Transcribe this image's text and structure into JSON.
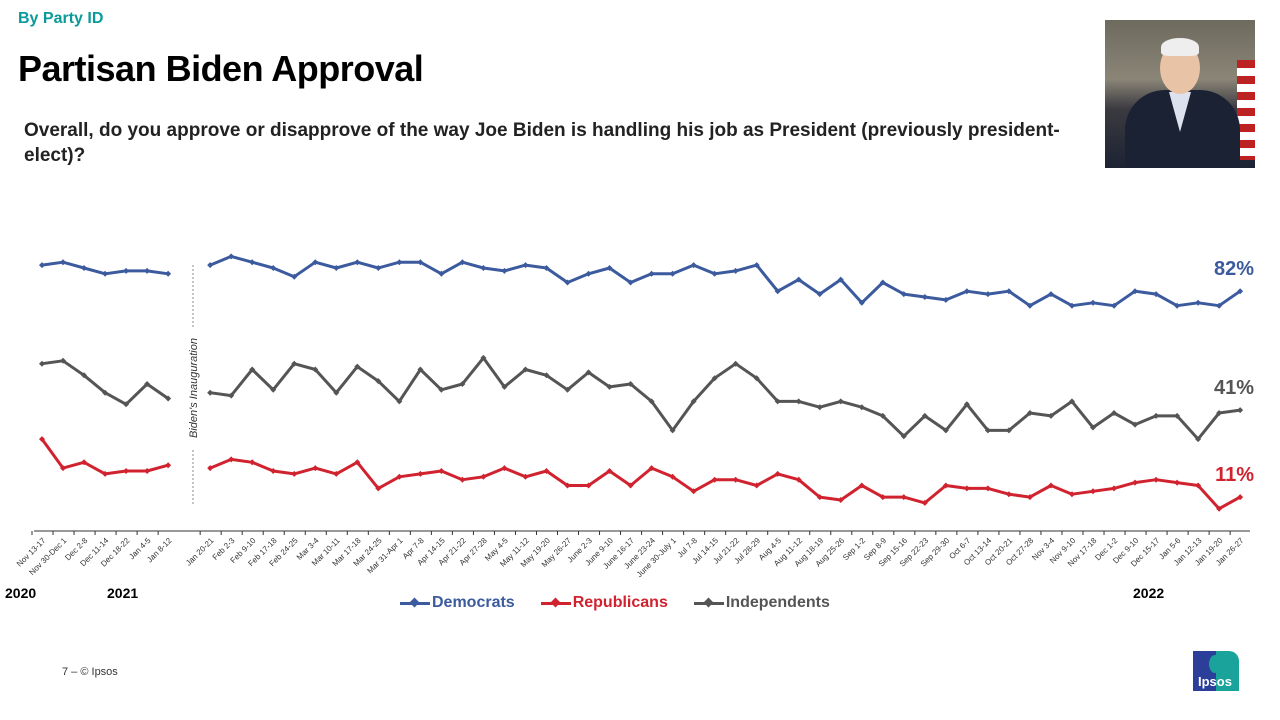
{
  "header": {
    "kicker": "By Party ID",
    "title": "Partisan Biden Approval",
    "question": "Overall, do you approve or disapprove of the way Joe Biden is handling his job as President (previously president-elect)?"
  },
  "footer": {
    "page": "7 –  © Ipsos",
    "logo_text": "Ipsos"
  },
  "colors": {
    "democrats": "#3c5a9e",
    "republicans": "#d0232f",
    "independents": "#555555",
    "kicker": "#0a9a9a"
  },
  "chart_data": {
    "type": "line",
    "categories": [
      "Nov 13-17",
      "Nov 30-Dec 1",
      "Dec 2-8",
      "Dec 11-14",
      "Dec 18-22",
      "Jan 4-5",
      "Jan 8-12",
      "Jan 20-21",
      "Feb 2-3",
      "Feb 9-10",
      "Feb 17-18",
      "Feb 24-25",
      "Mar 3-4",
      "Mar 10-11",
      "Mar 17-18",
      "Mar 24-25",
      "Mar 31-Apr 1",
      "Apr 7-8",
      "Apr 14-15",
      "Apr 21-22",
      "Apr 27-28",
      "May 4-5",
      "May 11-12",
      "May 19-20",
      "May 26-27",
      "June 2-3",
      "June 9-10",
      "June 16-17",
      "June 23-24",
      "June 30-July 1",
      "Jul 7-8",
      "Jul 14-15",
      "Jul 21-22",
      "Jul 28-29",
      "Aug 4-5",
      "Aug 11-12",
      "Aug 18-19",
      "Aug 25-26",
      "Sep 1-2",
      "Sep 8-9",
      "Sep 15-16",
      "Sep 22-23",
      "Sep 29-30",
      "Oct 6-7",
      "Oct 13-14",
      "Oct 20-21",
      "Oct 27-28",
      "Nov 3-4",
      "Nov 9-10",
      "Nov 17-18",
      "Dec 1-2",
      "Dec 9-10",
      "Dec 15-17",
      "Jan 5-6",
      "Jan 12-13",
      "Jan 19-20",
      "Jan 26-27"
    ],
    "year_labels": [
      "2020",
      "2021",
      "2022"
    ],
    "annotation": "Biden's Inauguration",
    "series": [
      {
        "name": "Democrats",
        "key": "democrats",
        "end_label": "82%",
        "values": [
          91,
          92,
          90,
          88,
          89,
          89,
          88,
          91,
          94,
          92,
          90,
          87,
          92,
          90,
          92,
          90,
          92,
          92,
          88,
          92,
          90,
          89,
          91,
          90,
          85,
          88,
          90,
          85,
          88,
          88,
          91,
          88,
          89,
          91,
          82,
          86,
          81,
          86,
          78,
          85,
          81,
          80,
          79,
          82,
          81,
          82,
          77,
          81,
          77,
          78,
          77,
          82,
          81,
          77,
          78,
          77,
          82
        ]
      },
      {
        "name": "Republicans",
        "key": "republicans",
        "end_label": "11%",
        "values": [
          31,
          21,
          23,
          19,
          20,
          20,
          22,
          21,
          24,
          23,
          20,
          19,
          21,
          19,
          23,
          14,
          18,
          19,
          20,
          17,
          18,
          21,
          18,
          20,
          15,
          15,
          20,
          15,
          21,
          18,
          13,
          17,
          17,
          15,
          19,
          17,
          11,
          10,
          15,
          11,
          11,
          9,
          15,
          14,
          14,
          12,
          11,
          15,
          12,
          13,
          14,
          16,
          17,
          16,
          15,
          7,
          11
        ]
      },
      {
        "name": "Independents",
        "key": "independents",
        "end_label": "41%",
        "values": [
          57,
          58,
          53,
          47,
          43,
          50,
          45,
          47,
          46,
          55,
          48,
          57,
          55,
          47,
          56,
          51,
          44,
          55,
          48,
          50,
          59,
          49,
          55,
          53,
          48,
          54,
          49,
          50,
          44,
          34,
          44,
          52,
          57,
          52,
          44,
          44,
          42,
          44,
          42,
          39,
          32,
          39,
          34,
          43,
          34,
          34,
          40,
          39,
          44,
          35,
          40,
          36,
          39,
          39,
          31,
          40,
          41
        ]
      }
    ],
    "ylim": [
      0,
      100
    ],
    "grid": false,
    "legend": "bottom"
  }
}
